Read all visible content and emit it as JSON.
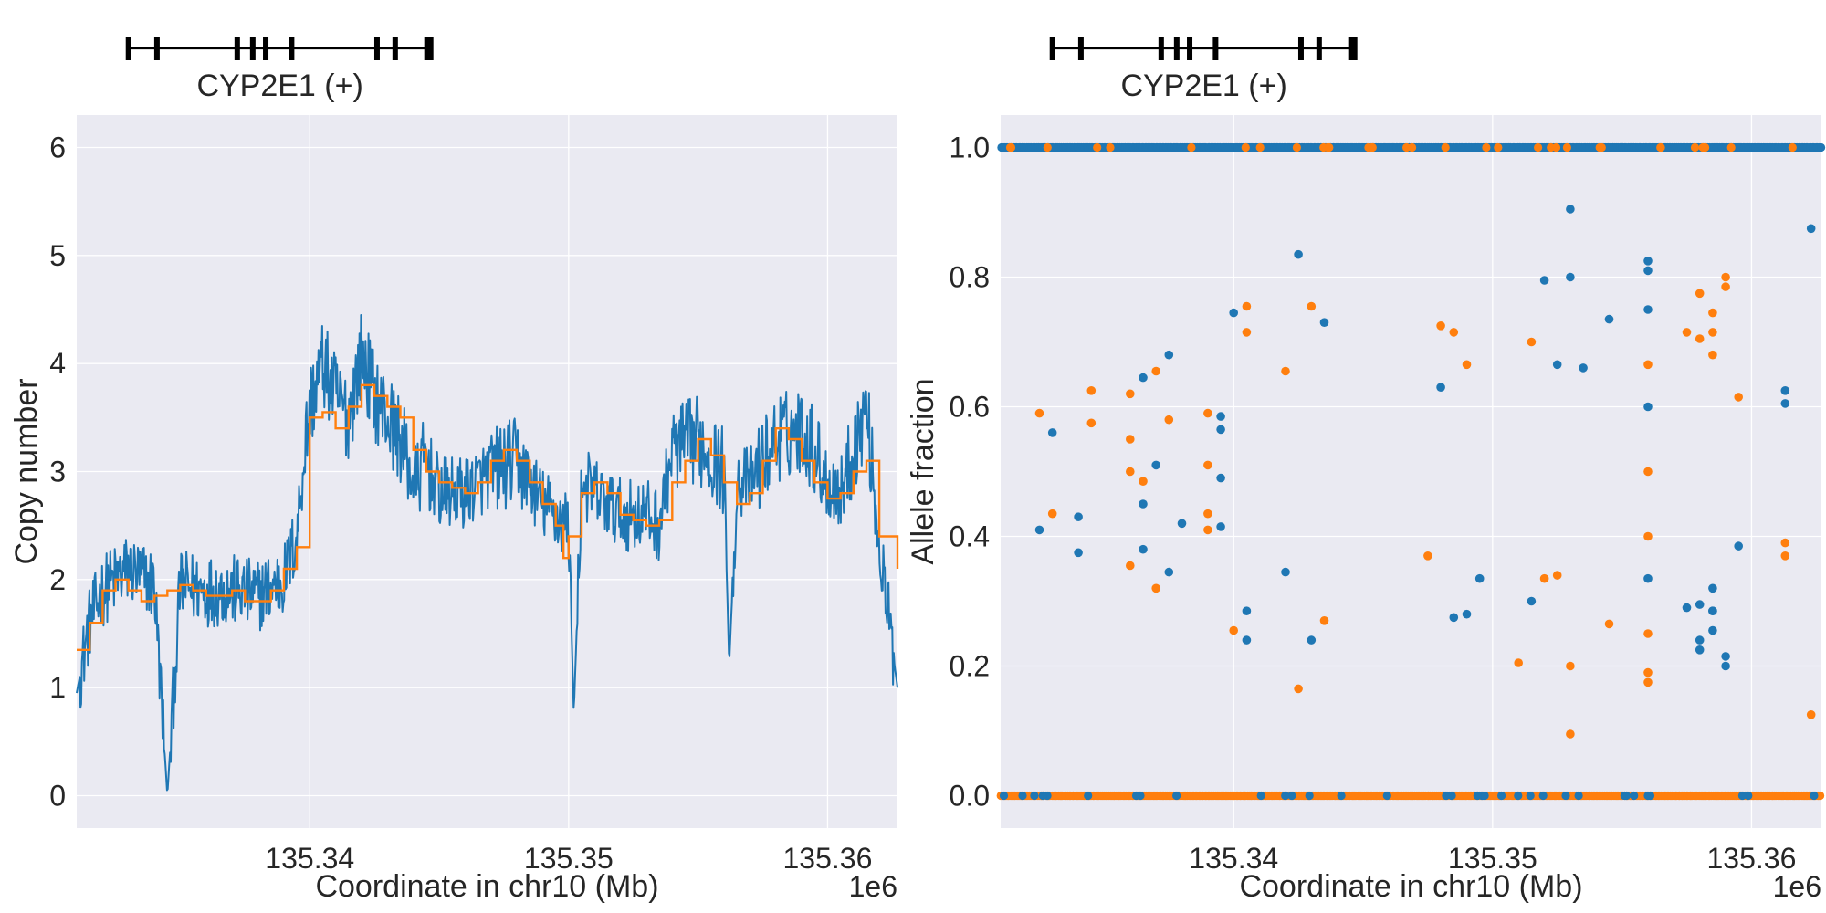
{
  "colors": {
    "background": "#eaeaf2",
    "grid": "#ffffff",
    "text": "#262626",
    "series_blue": "#1f77b4",
    "series_orange": "#ff7f0e",
    "gene": "#000000"
  },
  "chart_data": [
    {
      "type": "line",
      "title": "",
      "gene_track": {
        "label": "CYP2E1 (+)",
        "start": 135333000,
        "end": 135344700,
        "exons": [
          135333000,
          135334100,
          135337200,
          135337800,
          135338300,
          135339300,
          135342600,
          135343300,
          135344600
        ]
      },
      "xlabel": "Coordinate in chr10 (Mb)",
      "ylabel": "Copy number",
      "x_offset_label": "1e6",
      "xlim": [
        135.331,
        135.3627
      ],
      "ylim": [
        -0.3,
        6.3
      ],
      "xticks": [
        135.34,
        135.35,
        135.36
      ],
      "xtick_labels": [
        "135.34",
        "135.35",
        "135.36"
      ],
      "yticks": [
        0,
        1,
        2,
        3,
        4,
        5,
        6
      ],
      "ytick_labels": [
        "0",
        "1",
        "2",
        "3",
        "4",
        "5",
        "6"
      ],
      "grid": true,
      "series": [
        {
          "color": "blue",
          "style": "noisy-line",
          "points": [
            [
              135.331,
              0.95
            ],
            [
              135.3315,
              1.6
            ],
            [
              135.332,
              1.9
            ],
            [
              135.333,
              2.1
            ],
            [
              135.334,
              1.95
            ],
            [
              135.3345,
              0.0
            ],
            [
              135.335,
              1.95
            ],
            [
              135.336,
              1.9
            ],
            [
              135.337,
              1.9
            ],
            [
              135.338,
              1.85
            ],
            [
              135.339,
              2.0
            ],
            [
              135.3395,
              2.4
            ],
            [
              135.3398,
              3.2
            ],
            [
              135.34,
              3.6
            ],
            [
              135.3405,
              4.0
            ],
            [
              135.341,
              3.7
            ],
            [
              135.3415,
              3.5
            ],
            [
              135.342,
              4.1
            ],
            [
              135.3425,
              3.7
            ],
            [
              135.343,
              3.5
            ],
            [
              135.3435,
              3.3
            ],
            [
              135.344,
              2.9
            ],
            [
              135.3445,
              3.1
            ],
            [
              135.345,
              2.8
            ],
            [
              135.346,
              2.8
            ],
            [
              135.347,
              3.0
            ],
            [
              135.348,
              3.1
            ],
            [
              135.3485,
              2.9
            ],
            [
              135.349,
              2.7
            ],
            [
              135.3495,
              2.6
            ],
            [
              135.35,
              2.5
            ],
            [
              135.3502,
              0.75
            ],
            [
              135.3505,
              2.9
            ],
            [
              135.351,
              2.8
            ],
            [
              135.352,
              2.6
            ],
            [
              135.353,
              2.6
            ],
            [
              135.3535,
              2.5
            ],
            [
              135.354,
              3.2
            ],
            [
              135.355,
              3.3
            ],
            [
              135.356,
              3.0
            ],
            [
              135.3562,
              1.2
            ],
            [
              135.3565,
              2.9
            ],
            [
              135.357,
              2.9
            ],
            [
              135.358,
              3.3
            ],
            [
              135.359,
              3.4
            ],
            [
              135.3595,
              3.2
            ],
            [
              135.36,
              2.9
            ],
            [
              135.3605,
              2.8
            ],
            [
              135.361,
              3.2
            ],
            [
              135.3615,
              3.6
            ],
            [
              135.362,
              2.3
            ],
            [
              135.3627,
              1.0
            ]
          ]
        },
        {
          "color": "orange",
          "style": "step-line",
          "points": [
            [
              135.331,
              1.35
            ],
            [
              135.3315,
              1.6
            ],
            [
              135.332,
              1.9
            ],
            [
              135.3325,
              2.0
            ],
            [
              135.333,
              1.9
            ],
            [
              135.3335,
              1.8
            ],
            [
              135.334,
              1.85
            ],
            [
              135.3345,
              1.9
            ],
            [
              135.335,
              1.95
            ],
            [
              135.3355,
              1.9
            ],
            [
              135.336,
              1.85
            ],
            [
              135.337,
              1.9
            ],
            [
              135.3375,
              1.8
            ],
            [
              135.338,
              1.8
            ],
            [
              135.3385,
              1.9
            ],
            [
              135.339,
              2.1
            ],
            [
              135.3395,
              2.3
            ],
            [
              135.34,
              3.5
            ],
            [
              135.3405,
              3.55
            ],
            [
              135.341,
              3.4
            ],
            [
              135.3415,
              3.6
            ],
            [
              135.342,
              3.8
            ],
            [
              135.3425,
              3.7
            ],
            [
              135.343,
              3.6
            ],
            [
              135.3435,
              3.5
            ],
            [
              135.344,
              3.2
            ],
            [
              135.3445,
              3.0
            ],
            [
              135.345,
              2.9
            ],
            [
              135.3455,
              2.85
            ],
            [
              135.346,
              2.8
            ],
            [
              135.3465,
              2.9
            ],
            [
              135.347,
              3.1
            ],
            [
              135.3475,
              3.2
            ],
            [
              135.348,
              3.1
            ],
            [
              135.3485,
              2.9
            ],
            [
              135.349,
              2.7
            ],
            [
              135.3495,
              2.5
            ],
            [
              135.3498,
              2.2
            ],
            [
              135.35,
              2.4
            ],
            [
              135.3505,
              2.8
            ],
            [
              135.351,
              2.9
            ],
            [
              135.3515,
              2.8
            ],
            [
              135.352,
              2.6
            ],
            [
              135.3525,
              2.55
            ],
            [
              135.353,
              2.5
            ],
            [
              135.3535,
              2.55
            ],
            [
              135.354,
              2.9
            ],
            [
              135.3545,
              3.1
            ],
            [
              135.355,
              3.3
            ],
            [
              135.3555,
              3.15
            ],
            [
              135.356,
              2.9
            ],
            [
              135.3565,
              2.7
            ],
            [
              135.357,
              2.8
            ],
            [
              135.3575,
              3.1
            ],
            [
              135.358,
              3.4
            ],
            [
              135.3585,
              3.3
            ],
            [
              135.359,
              3.1
            ],
            [
              135.3595,
              2.9
            ],
            [
              135.36,
              2.75
            ],
            [
              135.3605,
              2.8
            ],
            [
              135.361,
              3.0
            ],
            [
              135.3615,
              3.1
            ],
            [
              135.362,
              2.4
            ],
            [
              135.3627,
              2.1
            ]
          ]
        }
      ]
    },
    {
      "type": "scatter",
      "title": "",
      "gene_track": {
        "label": "CYP2E1 (+)",
        "start": 135333000,
        "end": 135344700,
        "exons": [
          135333000,
          135334100,
          135337200,
          135337800,
          135338300,
          135339300,
          135342600,
          135343300,
          135344600
        ]
      },
      "xlabel": "Coordinate in chr10 (Mb)",
      "ylabel": "Allele fraction",
      "x_offset_label": "1e6",
      "xlim": [
        135.331,
        135.3627
      ],
      "ylim": [
        -0.05,
        1.05
      ],
      "xticks": [
        135.34,
        135.35,
        135.36
      ],
      "xtick_labels": [
        "135.34",
        "135.35",
        "135.36"
      ],
      "yticks": [
        0.0,
        0.2,
        0.4,
        0.6,
        0.8,
        1.0
      ],
      "ytick_labels": [
        "0.0",
        "0.2",
        "0.4",
        "0.6",
        "0.8",
        "1.0"
      ],
      "grid": true,
      "series": [
        {
          "color": "blue",
          "band_values": [
            1.0
          ],
          "points": [
            [
              135.3325,
              0.41
            ],
            [
              135.333,
              0.56
            ],
            [
              135.334,
              0.43
            ],
            [
              135.334,
              0.375
            ],
            [
              135.3365,
              0.45
            ],
            [
              135.3365,
              0.645
            ],
            [
              135.3365,
              0.38
            ],
            [
              135.337,
              0.51
            ],
            [
              135.3375,
              0.68
            ],
            [
              135.3375,
              0.345
            ],
            [
              135.338,
              0.42
            ],
            [
              135.3395,
              0.585
            ],
            [
              135.3395,
              0.565
            ],
            [
              135.3395,
              0.49
            ],
            [
              135.3395,
              0.415
            ],
            [
              135.34,
              0.745
            ],
            [
              135.3405,
              0.285
            ],
            [
              135.3405,
              0.24
            ],
            [
              135.342,
              0.345
            ],
            [
              135.3425,
              0.835
            ],
            [
              135.343,
              0.24
            ],
            [
              135.3435,
              0.73
            ],
            [
              135.348,
              0.63
            ],
            [
              135.3485,
              0.275
            ],
            [
              135.349,
              0.28
            ],
            [
              135.3495,
              0.335
            ],
            [
              135.3515,
              0.3
            ],
            [
              135.352,
              0.795
            ],
            [
              135.3525,
              0.665
            ],
            [
              135.353,
              0.905
            ],
            [
              135.353,
              0.8
            ],
            [
              135.3535,
              0.66
            ],
            [
              135.3545,
              0.735
            ],
            [
              135.356,
              0.825
            ],
            [
              135.356,
              0.81
            ],
            [
              135.356,
              0.75
            ],
            [
              135.356,
              0.6
            ],
            [
              135.356,
              0.335
            ],
            [
              135.3575,
              0.29
            ],
            [
              135.358,
              0.24
            ],
            [
              135.358,
              0.225
            ],
            [
              135.358,
              0.295
            ],
            [
              135.3585,
              0.255
            ],
            [
              135.3585,
              0.285
            ],
            [
              135.3585,
              0.285
            ],
            [
              135.3585,
              0.32
            ],
            [
              135.359,
              0.2
            ],
            [
              135.359,
              0.215
            ],
            [
              135.3595,
              0.385
            ],
            [
              135.3613,
              0.625
            ],
            [
              135.3613,
              0.605
            ],
            [
              135.3623,
              0.875
            ]
          ]
        },
        {
          "color": "orange",
          "band_values": [
            0.0
          ],
          "points": [
            [
              135.3325,
              0.59
            ],
            [
              135.333,
              0.435
            ],
            [
              135.3345,
              0.575
            ],
            [
              135.3345,
              0.625
            ],
            [
              135.336,
              0.55
            ],
            [
              135.336,
              0.5
            ],
            [
              135.336,
              0.62
            ],
            [
              135.336,
              0.355
            ],
            [
              135.3365,
              0.485
            ],
            [
              135.337,
              0.32
            ],
            [
              135.337,
              0.655
            ],
            [
              135.3375,
              0.58
            ],
            [
              135.339,
              0.59
            ],
            [
              135.339,
              0.51
            ],
            [
              135.339,
              0.435
            ],
            [
              135.339,
              0.41
            ],
            [
              135.34,
              0.255
            ],
            [
              135.3405,
              0.755
            ],
            [
              135.3405,
              0.715
            ],
            [
              135.342,
              0.655
            ],
            [
              135.3425,
              0.165
            ],
            [
              135.343,
              0.755
            ],
            [
              135.3435,
              0.27
            ],
            [
              135.3475,
              0.37
            ],
            [
              135.348,
              0.725
            ],
            [
              135.3485,
              0.715
            ],
            [
              135.349,
              0.665
            ],
            [
              135.351,
              0.205
            ],
            [
              135.3515,
              0.7
            ],
            [
              135.352,
              0.335
            ],
            [
              135.3525,
              0.34
            ],
            [
              135.353,
              0.2
            ],
            [
              135.353,
              0.095
            ],
            [
              135.3545,
              0.265
            ],
            [
              135.356,
              0.665
            ],
            [
              135.356,
              0.5
            ],
            [
              135.356,
              0.4
            ],
            [
              135.356,
              0.25
            ],
            [
              135.356,
              0.19
            ],
            [
              135.356,
              0.175
            ],
            [
              135.3575,
              0.715
            ],
            [
              135.358,
              0.775
            ],
            [
              135.358,
              0.705
            ],
            [
              135.3585,
              0.745
            ],
            [
              135.3585,
              0.715
            ],
            [
              135.3585,
              0.68
            ],
            [
              135.359,
              0.8
            ],
            [
              135.359,
              0.785
            ],
            [
              135.3595,
              0.615
            ],
            [
              135.3613,
              0.39
            ],
            [
              135.3613,
              0.37
            ],
            [
              135.3623,
              0.125
            ]
          ]
        }
      ]
    }
  ]
}
